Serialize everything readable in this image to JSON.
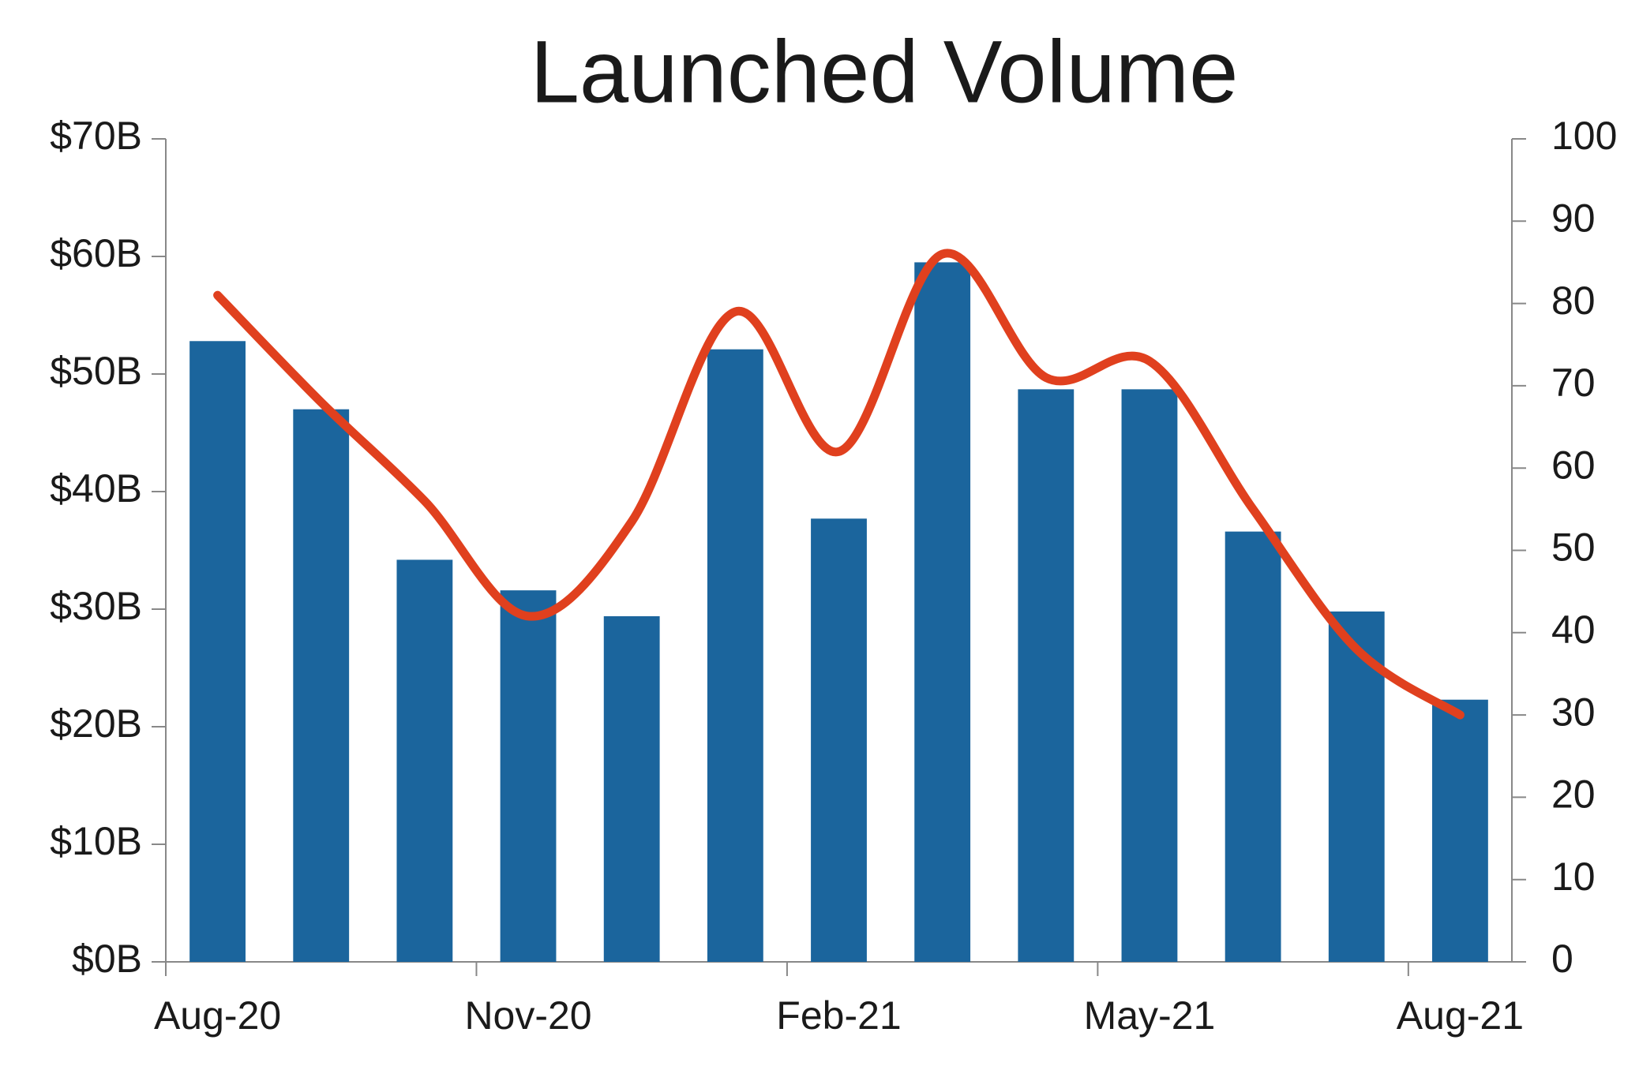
{
  "chart_data": {
    "type": "combo",
    "title": "Launched Volume",
    "categories": [
      "Aug-20",
      null,
      null,
      "Nov-20",
      null,
      null,
      "Feb-21",
      null,
      null,
      "May-21",
      null,
      null,
      "Aug-21"
    ],
    "series": [
      {
        "type": "bar",
        "color": "#1b659d",
        "values": [
          52.8,
          47,
          34.2,
          31.6,
          29.4,
          52.1,
          37.7,
          59.5,
          48.7,
          48.7,
          36.6,
          29.8,
          22.3
        ]
      },
      {
        "type": "line",
        "axis": "y2",
        "color": "#e0401e",
        "values": [
          81,
          68,
          56,
          42,
          53.5,
          79,
          62,
          86,
          71,
          73,
          55,
          38,
          30
        ]
      }
    ],
    "ylim": [
      0,
      70
    ],
    "yticks": [
      {
        "value": 0,
        "label": "$0B"
      },
      {
        "value": 10,
        "label": "$10B"
      },
      {
        "value": 20,
        "label": "$20B"
      },
      {
        "value": 30,
        "label": "$30B"
      },
      {
        "value": 40,
        "label": "$40B"
      },
      {
        "value": 50,
        "label": "$50B"
      },
      {
        "value": 60,
        "label": "$60B"
      },
      {
        "value": 70,
        "label": "$70B"
      }
    ],
    "y2lim": [
      0,
      100
    ],
    "y2ticks": [
      0,
      10,
      20,
      30,
      40,
      50,
      60,
      70,
      80,
      90,
      100
    ]
  }
}
